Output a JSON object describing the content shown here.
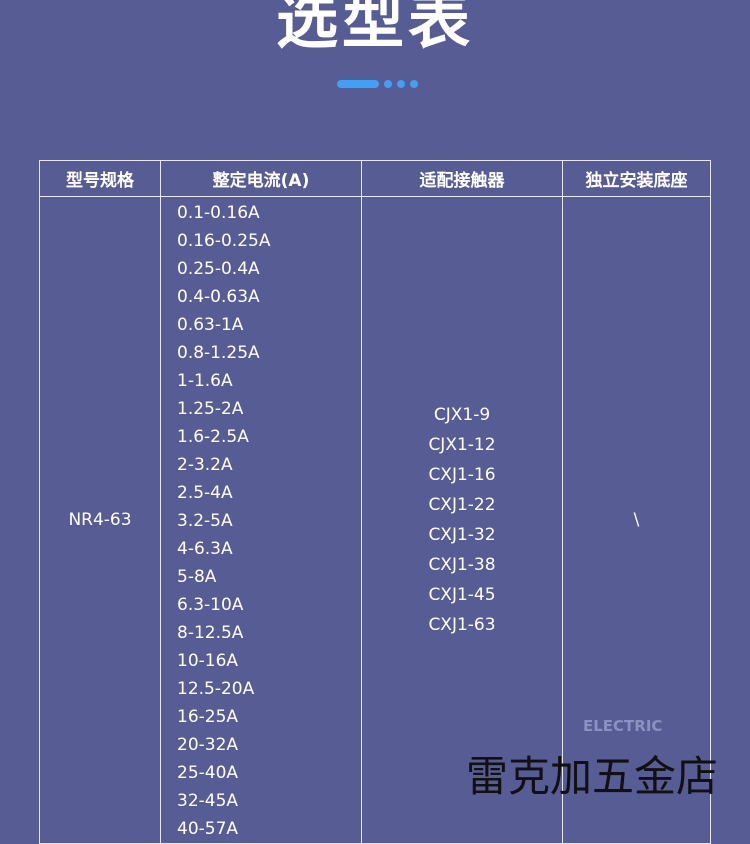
{
  "title": "选型表",
  "table": {
    "headers": [
      "型号规格",
      "整定电流(A)",
      "适配接触器",
      "独立安装底座"
    ],
    "model": "NR4-63",
    "currents": [
      "0.1-0.16A",
      "0.16-0.25A",
      "0.25-0.4A",
      "0.4-0.63A",
      "0.63-1A",
      "0.8-1.25A",
      "1-1.6A",
      "1.25-2A",
      "1.6-2.5A",
      "2-3.2A",
      "2.5-4A",
      "3.2-5A",
      "4-6.3A",
      "5-8A",
      "6.3-10A",
      "8-12.5A",
      "10-16A",
      "12.5-20A",
      "16-25A",
      "20-32A",
      "25-40A",
      "32-45A",
      "40-57A"
    ],
    "contactors": [
      "CJX1-9",
      "CJX1-12",
      "CXJ1-16",
      "CXJ1-22",
      "CXJ1-32",
      "CXJ1-38",
      "CXJ1-45",
      "CXJ1-63"
    ],
    "base": "\\"
  },
  "watermark": "雷克加五金店",
  "logo": "ELECTRIC",
  "colors": {
    "background": "#575c95",
    "accent": "#3fa0f5"
  }
}
